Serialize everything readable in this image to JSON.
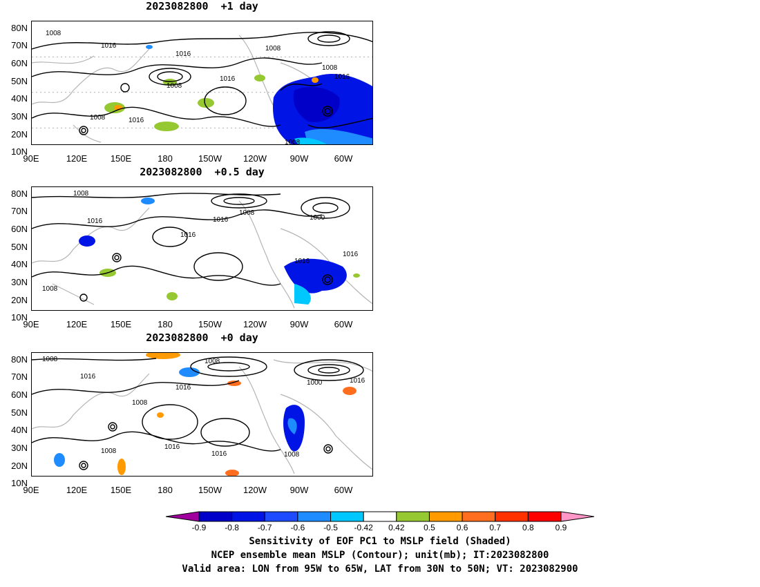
{
  "panels": [
    {
      "title": "2023082800  +1 day"
    },
    {
      "title": "2023082800  +0.5 day"
    },
    {
      "title": "2023082800  +0 day"
    }
  ],
  "axes": {
    "lat_labels": [
      "80N",
      "70N",
      "60N",
      "50N",
      "40N",
      "30N",
      "20N",
      "10N"
    ],
    "lon_labels": [
      "90E",
      "120E",
      "150E",
      "180",
      "150W",
      "120W",
      "90W",
      "60W"
    ],
    "lon_range": [
      90,
      300
    ],
    "lat_range": [
      10,
      80
    ]
  },
  "contour_labels": {
    "p1": [
      "1008",
      "1016",
      "1016",
      "1008",
      "1016",
      "1016",
      "1008",
      "1008",
      "1016",
      "1008",
      "1008"
    ],
    "p2": [
      "1008",
      "1016",
      "1016",
      "1016",
      "1008",
      "1000",
      "1016",
      "1016",
      "1008"
    ],
    "p3": [
      "1008",
      "1016",
      "1008",
      "1008",
      "1016",
      "1000",
      "1016",
      "1008",
      "1016",
      "1016",
      "1008"
    ]
  },
  "colorbar": {
    "ticks": [
      "-0.9",
      "-0.8",
      "-0.7",
      "-0.6",
      "-0.5",
      "-0.42",
      "0.42",
      "0.5",
      "0.6",
      "0.7",
      "0.8",
      "0.9"
    ],
    "colors": [
      "#a0009e",
      "#0000c8",
      "#0014e6",
      "#1e4bff",
      "#1e8cff",
      "#00c8ff",
      "#ffffff",
      "#96c832",
      "#ff9b00",
      "#ff6e1e",
      "#ff3200",
      "#ff0000",
      "#ff96c8"
    ]
  },
  "caption": {
    "line1": "Sensitivity of EOF PC1 to MSLP field (Shaded)",
    "line2": "NCEP ensemble mean MSLP (Contour); unit(mb); IT:2023082800",
    "line3": "Valid area: LON from 95W to 65W, LAT from 30N to 50N; VT: 2023082900"
  }
}
